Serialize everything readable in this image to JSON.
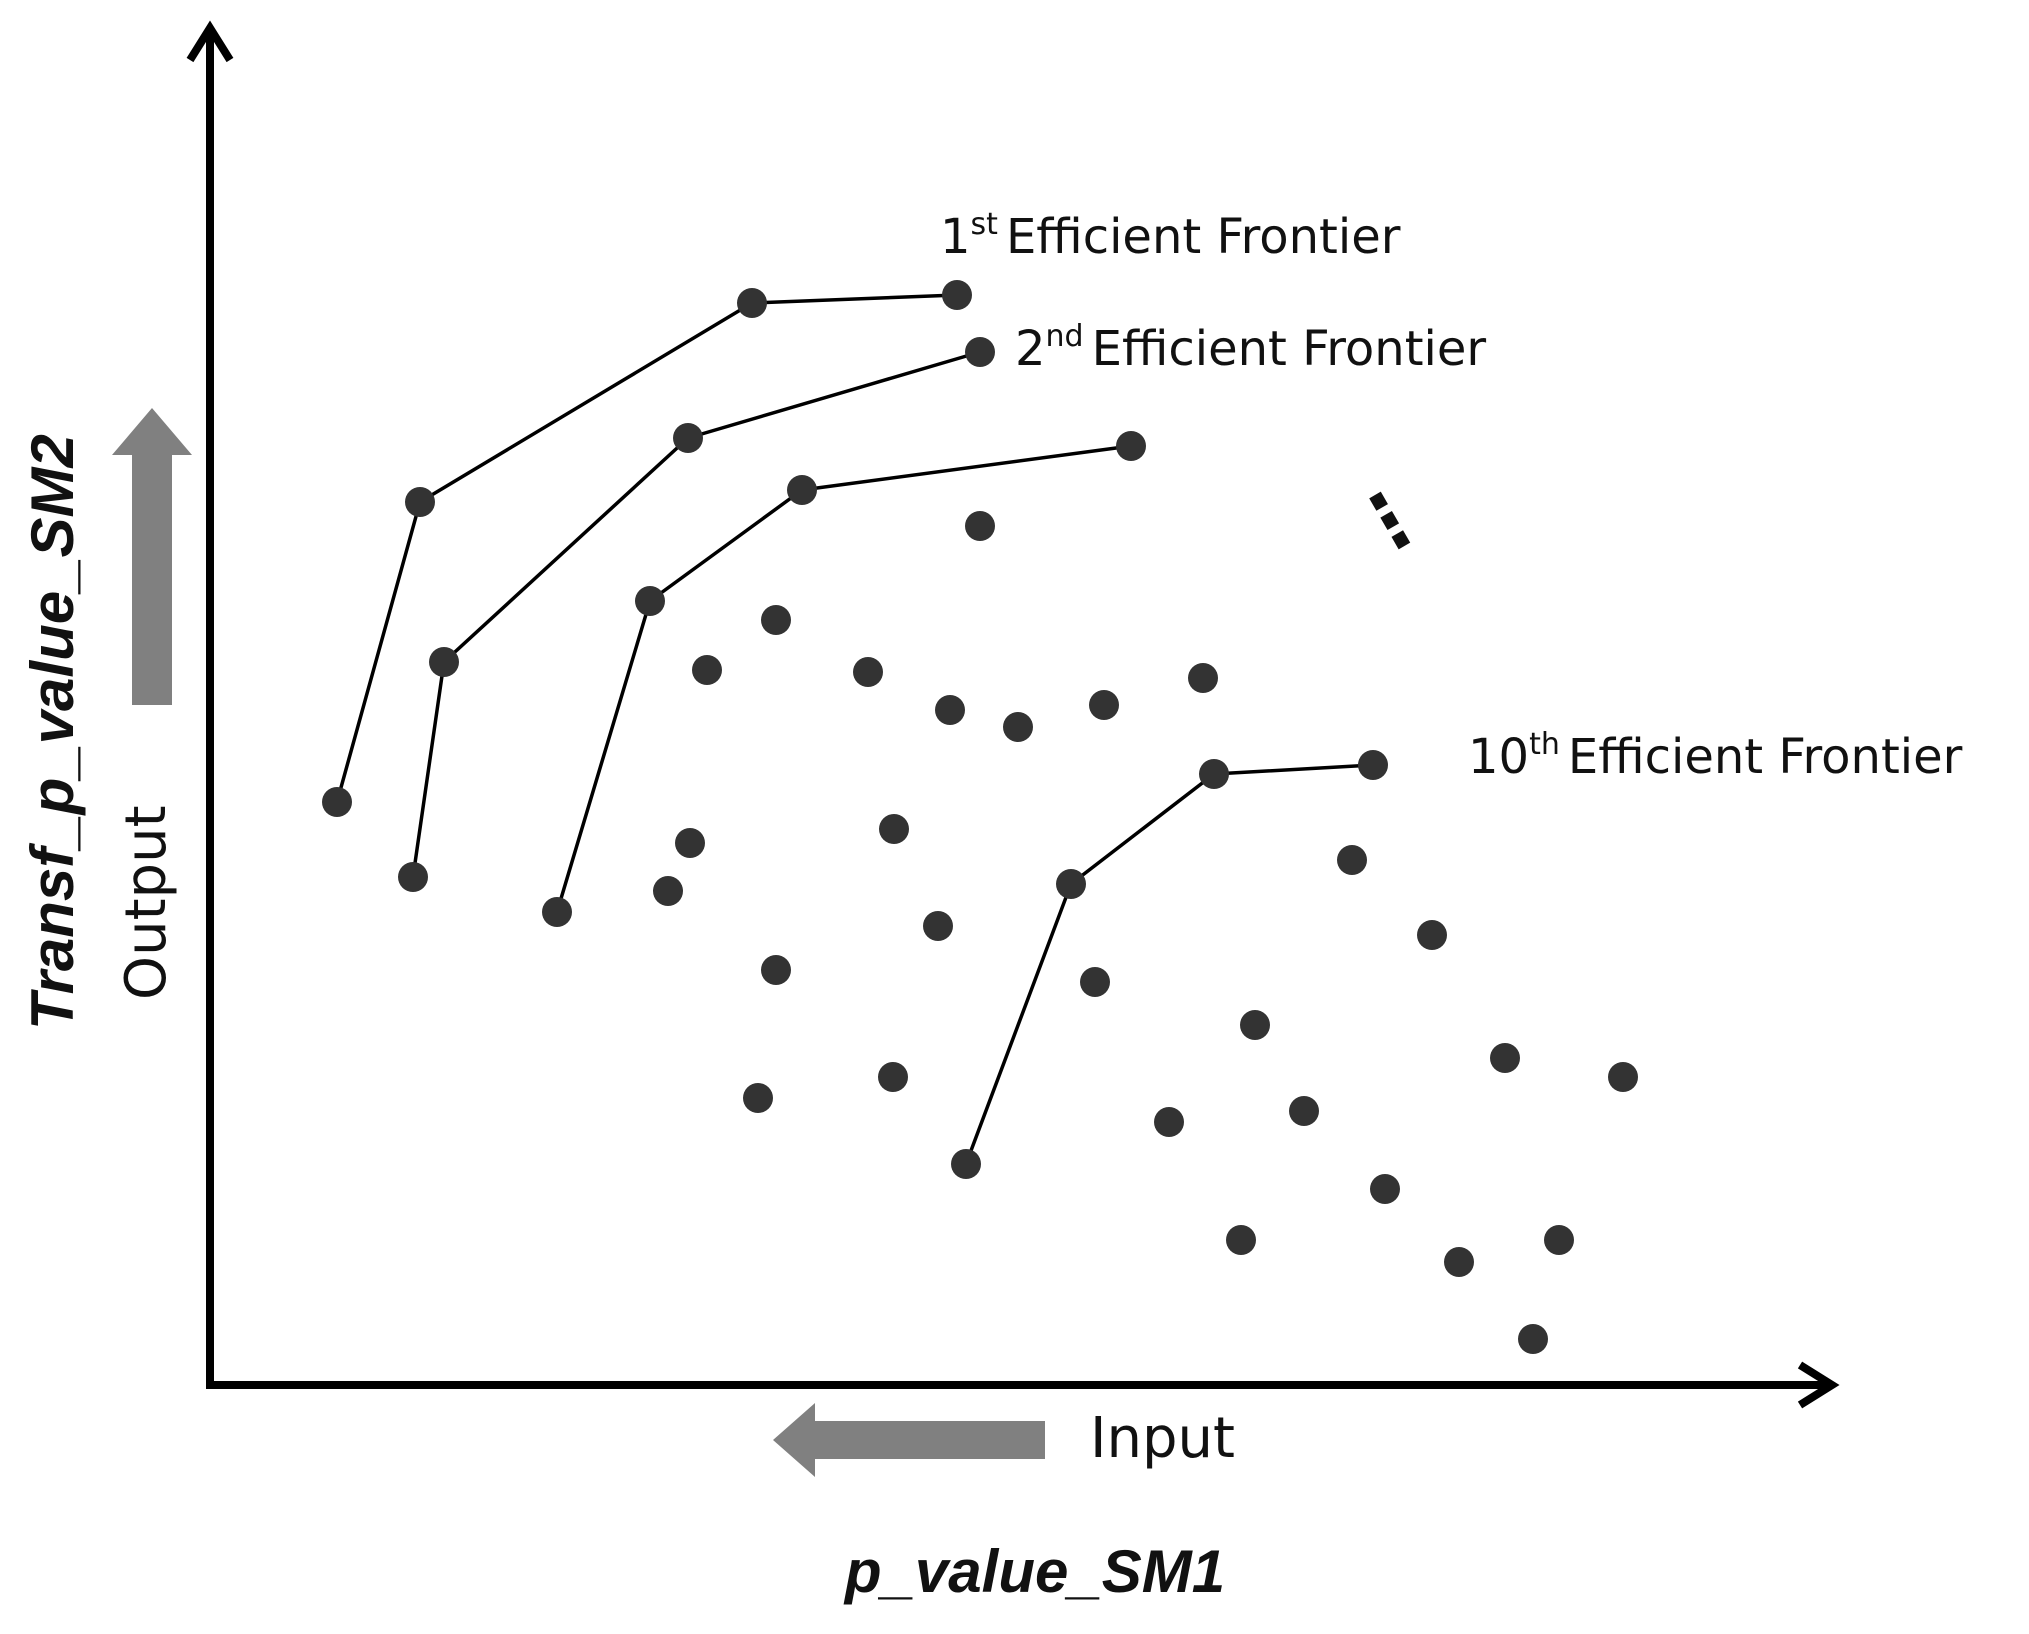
{
  "axes": {
    "x_title": "p_value_SM1",
    "y_title": "Transf_p_value_SM2",
    "x_direction_label": "Input",
    "y_direction_label": "Output"
  },
  "frontiers": [
    {
      "ordinal": "1",
      "suffix": "st",
      "text": "Efficient Frontier"
    },
    {
      "ordinal": "2",
      "suffix": "nd",
      "text": "Efficient Frontier"
    },
    {
      "ordinal": "10",
      "suffix": "th",
      "text": "Efficient Frontier"
    }
  ],
  "ellipsis": "⋮",
  "colors": {
    "axis": "#000000",
    "line": "#000000",
    "point": "#333333",
    "direction_arrow": "#808080"
  }
}
